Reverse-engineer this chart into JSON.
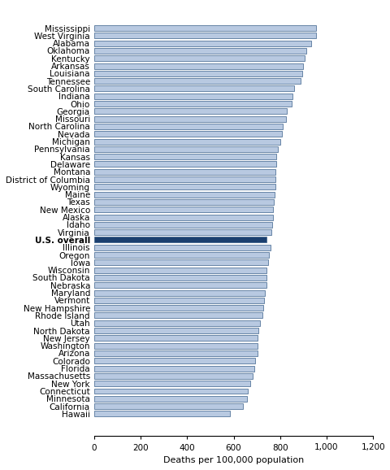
{
  "states": [
    "Mississippi",
    "West Virginia",
    "Alabama",
    "Oklahoma",
    "Kentucky",
    "Arkansas",
    "Louisiana",
    "Tennessee",
    "South Carolina",
    "Indiana",
    "Ohio",
    "Georgia",
    "Missouri",
    "North Carolina",
    "Nevada",
    "Michigan",
    "Pennsylvania",
    "Kansas",
    "Delaware",
    "Montana",
    "District of Columbia",
    "Wyoming",
    "Maine",
    "Texas",
    "New Mexico",
    "Alaska",
    "Idaho",
    "Virginia",
    "U.S. overall",
    "Illinois",
    "Oregon",
    "Iowa",
    "Wisconsin",
    "South Dakota",
    "Nebraska",
    "Maryland",
    "Vermont",
    "New Hampshire",
    "Rhode Island",
    "Utah",
    "North Dakota",
    "New Jersey",
    "Washington",
    "Arizona",
    "Colorado",
    "Florida",
    "Massachusetts",
    "New York",
    "Connecticut",
    "Minnesota",
    "California",
    "Hawaii"
  ],
  "values": [
    956.1,
    953.2,
    933.6,
    910.9,
    905.4,
    899.5,
    895.5,
    886.5,
    859.6,
    853.3,
    851.3,
    828.5,
    823.7,
    811.5,
    806.6,
    799.6,
    791.5,
    784.7,
    783.1,
    779.5,
    779.0,
    778.9,
    777.1,
    772.0,
    770.6,
    769.4,
    764.7,
    762.7,
    741.3,
    757.5,
    750.3,
    748.5,
    742.2,
    739.9,
    739.7,
    735.0,
    732.5,
    728.8,
    722.7,
    714.5,
    707.7,
    703.9,
    703.3,
    702.6,
    693.5,
    690.2,
    681.4,
    672.8,
    660.6,
    659.2,
    641.3,
    584.9
  ],
  "bar_color_default": "#b8c9e1",
  "bar_color_overall": "#1a3f6f",
  "bar_edgecolor": "#3a5f8a",
  "xlabel": "Deaths per 100,000 population",
  "xlim": [
    0,
    1200
  ],
  "xticks": [
    0,
    200,
    400,
    600,
    800,
    1000,
    1200
  ],
  "xtick_labels": [
    "0",
    "200",
    "400",
    "600",
    "800",
    "1,000",
    "1,200"
  ],
  "bar_height": 0.75,
  "label_fontsize": 8,
  "tick_fontsize": 7.5
}
